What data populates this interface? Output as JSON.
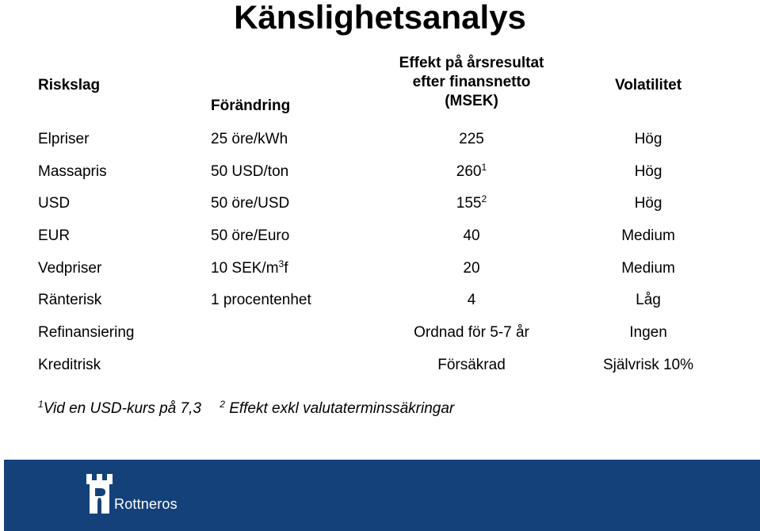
{
  "title": "Känslighetsanalys",
  "headers": {
    "riskslag": "Riskslag",
    "forandring": "Förändring",
    "effekt_line1": "Effekt på årsresultat",
    "effekt_line2": "efter finansnetto",
    "effekt_line3": "(MSEK)",
    "volatilitet": "Volatilitet"
  },
  "rows": [
    {
      "risk": "Elpriser",
      "change": "25 öre/kWh",
      "change_sup": "",
      "change_tail": "",
      "effect": "225",
      "effect_sup": "",
      "vol": "Hög"
    },
    {
      "risk": "Massapris",
      "change": "50 USD/ton",
      "change_sup": "",
      "change_tail": "",
      "effect": "260",
      "effect_sup": "1",
      "vol": "Hög"
    },
    {
      "risk": "USD",
      "change": "50 öre/USD",
      "change_sup": "",
      "change_tail": "",
      "effect": "155",
      "effect_sup": "2",
      "vol": "Hög"
    },
    {
      "risk": "EUR",
      "change": "50 öre/Euro",
      "change_sup": "",
      "change_tail": "",
      "effect": "40",
      "effect_sup": "",
      "vol": "Medium"
    },
    {
      "risk": "Vedpriser",
      "change": "10 SEK/m",
      "change_sup": "3",
      "change_tail": "f",
      "effect": "20",
      "effect_sup": "",
      "vol": "Medium"
    },
    {
      "risk": "Ränterisk",
      "change": "1 procentenhet",
      "change_sup": "",
      "change_tail": "",
      "effect": "4",
      "effect_sup": "",
      "vol": "Låg"
    },
    {
      "risk": "Refinansiering",
      "change": "",
      "change_sup": "",
      "change_tail": "",
      "effect": "Ordnad för 5-7 år",
      "effect_sup": "",
      "vol": "Ingen"
    },
    {
      "risk": "Kreditrisk",
      "change": "",
      "change_sup": "",
      "change_tail": "",
      "effect": "Försäkrad",
      "effect_sup": "",
      "vol": "Självrisk 10%"
    }
  ],
  "footnotes": [
    {
      "mark": "1",
      "text": "Vid en USD-kurs på 7,3"
    },
    {
      "mark": "2",
      "text": "Effekt exkl valutaterminssäkringar"
    }
  ],
  "footer": {
    "brand": "Rottneros",
    "band_color": "#15417a",
    "logo_icon": "castle-tower-icon"
  }
}
